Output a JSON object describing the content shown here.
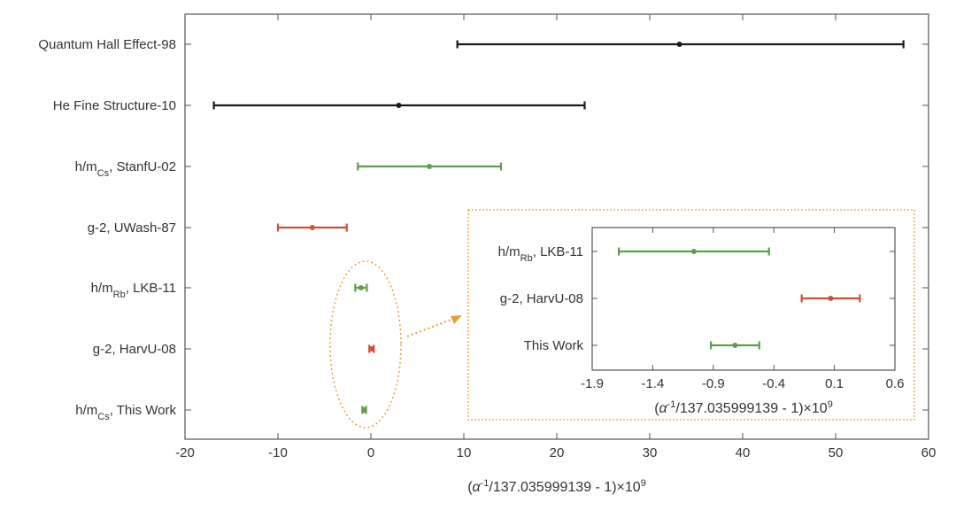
{
  "chart_data": [
    {
      "type": "errorbar",
      "xlabel": {
        "pre": "(",
        "alpha": "α",
        "sup1": "-1",
        "mid": "/137.035999139 - 1)×10",
        "sup2": "9"
      },
      "xlim": [
        -20,
        60
      ],
      "xticks": [
        -20,
        -10,
        0,
        10,
        20,
        30,
        40,
        50,
        60
      ],
      "grid": false,
      "points": [
        {
          "label": {
            "main": "Quantum Hall Effect-98"
          },
          "value": 33.2,
          "low": 9.3,
          "high": 57.3,
          "color": "#1a1a1a"
        },
        {
          "label": {
            "main": "He Fine Structure-10"
          },
          "value": 3.0,
          "low": -16.9,
          "high": 23.0,
          "color": "#1a1a1a"
        },
        {
          "label": {
            "pre": "h/m",
            "sub": "Cs",
            "post": ", StanfU-02"
          },
          "value": 6.3,
          "low": -1.4,
          "high": 14.0,
          "color": "#5e9e4e"
        },
        {
          "label": {
            "main": "g-2, UWash-87"
          },
          "value": -6.3,
          "low": -10.0,
          "high": -2.6,
          "color": "#d0503a"
        },
        {
          "label": {
            "pre": "h/m",
            "sub": "Rb",
            "post": ", LKB-11"
          },
          "value": -1.06,
          "low": -1.68,
          "high": -0.44,
          "color": "#5e9e4e"
        },
        {
          "label": {
            "main": "g-2, HarvU-08"
          },
          "value": 0.07,
          "low": -0.17,
          "high": 0.31,
          "color": "#d0503a"
        },
        {
          "label": {
            "pre": "h/m",
            "sub": "Cs",
            "post": ", This Work"
          },
          "value": -0.72,
          "low": -0.92,
          "high": -0.52,
          "color": "#5e9e4e"
        }
      ]
    },
    {
      "type": "errorbar",
      "role": "inset",
      "xlabel": {
        "pre": "(",
        "alpha": "α",
        "sup1": "-1",
        "mid": "/137.035999139 - 1)×10",
        "sup2": "9"
      },
      "xlim": [
        -1.9,
        0.6
      ],
      "xticks": [
        "-1.9",
        "-1.4",
        "-0.9",
        "-0.4",
        "0.1",
        "0.6"
      ],
      "grid": false,
      "points": [
        {
          "label": {
            "pre": "h/m",
            "sub": "Rb",
            "post": ", LKB-11"
          },
          "value": -1.06,
          "low": -1.68,
          "high": -0.44,
          "color": "#5e9e4e"
        },
        {
          "label": {
            "main": "g-2, HarvU-08"
          },
          "value": 0.07,
          "low": -0.17,
          "high": 0.31,
          "color": "#d0503a"
        },
        {
          "label": {
            "main": "This Work"
          },
          "value": -0.72,
          "low": -0.92,
          "high": -0.52,
          "color": "#5e9e4e"
        }
      ]
    }
  ],
  "colors": {
    "axis": "#555555",
    "highlight": "#e3a13c",
    "text": "#333333"
  }
}
